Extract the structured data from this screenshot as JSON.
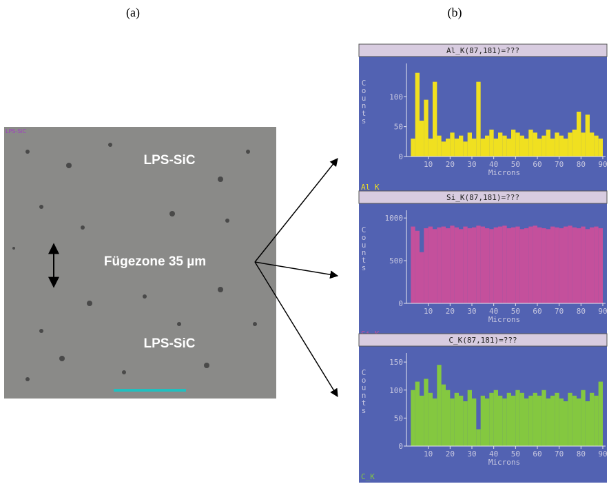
{
  "panel_labels": [
    "(a)",
    "(b)"
  ],
  "image": {
    "tag": "LPS-SiC",
    "labels": [
      "LPS-SiC",
      "Fügezone 35 µm",
      "LPS-SiC"
    ]
  },
  "chart_data": [
    {
      "type": "histogram",
      "title": "Al_K(87,181)=???",
      "series_label": "Al_K",
      "y_label": "Counts",
      "x_label": "Microns",
      "color": "#f0e020",
      "bins": [
        2,
        4,
        6,
        8,
        10,
        12,
        14,
        16,
        18,
        20,
        22,
        24,
        26,
        28,
        30,
        32,
        34,
        36,
        38,
        40,
        42,
        44,
        46,
        48,
        50,
        52,
        54,
        56,
        58,
        60,
        62,
        64,
        66,
        68,
        70,
        72,
        74,
        76,
        78,
        80,
        82,
        84,
        86,
        88,
        90
      ],
      "values": [
        30,
        140,
        60,
        95,
        30,
        125,
        35,
        25,
        30,
        40,
        30,
        35,
        25,
        40,
        30,
        125,
        30,
        35,
        45,
        30,
        40,
        35,
        30,
        45,
        40,
        35,
        30,
        45,
        40,
        30,
        35,
        45,
        30,
        40,
        35,
        30,
        40,
        45,
        75,
        40,
        70,
        40,
        35,
        30
      ],
      "xlim": [
        0,
        90
      ],
      "xticks": [
        10,
        20,
        30,
        40,
        50,
        60,
        70,
        80,
        90
      ],
      "ylim": [
        0,
        150
      ],
      "yticks": [
        0,
        50,
        100
      ]
    },
    {
      "type": "histogram",
      "title": "Si_K(87,181)=???",
      "series_label": "Si_K",
      "y_label": "Counts",
      "x_label": "Microns",
      "color": "#c4509c",
      "bins": [
        2,
        4,
        6,
        8,
        10,
        12,
        14,
        16,
        18,
        20,
        22,
        24,
        26,
        28,
        30,
        32,
        34,
        36,
        38,
        40,
        42,
        44,
        46,
        48,
        50,
        52,
        54,
        56,
        58,
        60,
        62,
        64,
        66,
        68,
        70,
        72,
        74,
        76,
        78,
        80,
        82,
        84,
        86,
        88,
        90
      ],
      "values": [
        900,
        850,
        600,
        880,
        900,
        870,
        890,
        900,
        880,
        910,
        890,
        870,
        900,
        880,
        890,
        910,
        900,
        880,
        870,
        890,
        900,
        910,
        880,
        890,
        900,
        870,
        880,
        900,
        910,
        890,
        880,
        870,
        900,
        890,
        880,
        900,
        910,
        890,
        880,
        900,
        870,
        890,
        900,
        880
      ],
      "xlim": [
        0,
        90
      ],
      "xticks": [
        10,
        20,
        30,
        40,
        50,
        60,
        70,
        80,
        90
      ],
      "ylim": [
        0,
        1050
      ],
      "yticks": [
        0,
        500,
        1000
      ]
    },
    {
      "type": "histogram",
      "title": "C_K(87,181)=???",
      "series_label": "C_K",
      "y_label": "Counts",
      "x_label": "Microns",
      "color": "#84c840",
      "bins": [
        2,
        4,
        6,
        8,
        10,
        12,
        14,
        16,
        18,
        20,
        22,
        24,
        26,
        28,
        30,
        32,
        34,
        36,
        38,
        40,
        42,
        44,
        46,
        48,
        50,
        52,
        54,
        56,
        58,
        60,
        62,
        64,
        66,
        68,
        70,
        72,
        74,
        76,
        78,
        80,
        82,
        84,
        86,
        88,
        90
      ],
      "values": [
        100,
        115,
        90,
        120,
        95,
        85,
        145,
        110,
        100,
        85,
        95,
        90,
        80,
        100,
        85,
        30,
        90,
        85,
        95,
        100,
        90,
        85,
        95,
        90,
        100,
        95,
        85,
        90,
        95,
        90,
        100,
        85,
        90,
        95,
        85,
        80,
        95,
        90,
        85,
        100,
        80,
        95,
        90,
        115
      ],
      "xlim": [
        0,
        90
      ],
      "xticks": [
        10,
        20,
        30,
        40,
        50,
        60,
        70,
        80,
        90
      ],
      "ylim": [
        0,
        160
      ],
      "yticks": [
        0,
        50,
        100,
        150
      ]
    }
  ]
}
